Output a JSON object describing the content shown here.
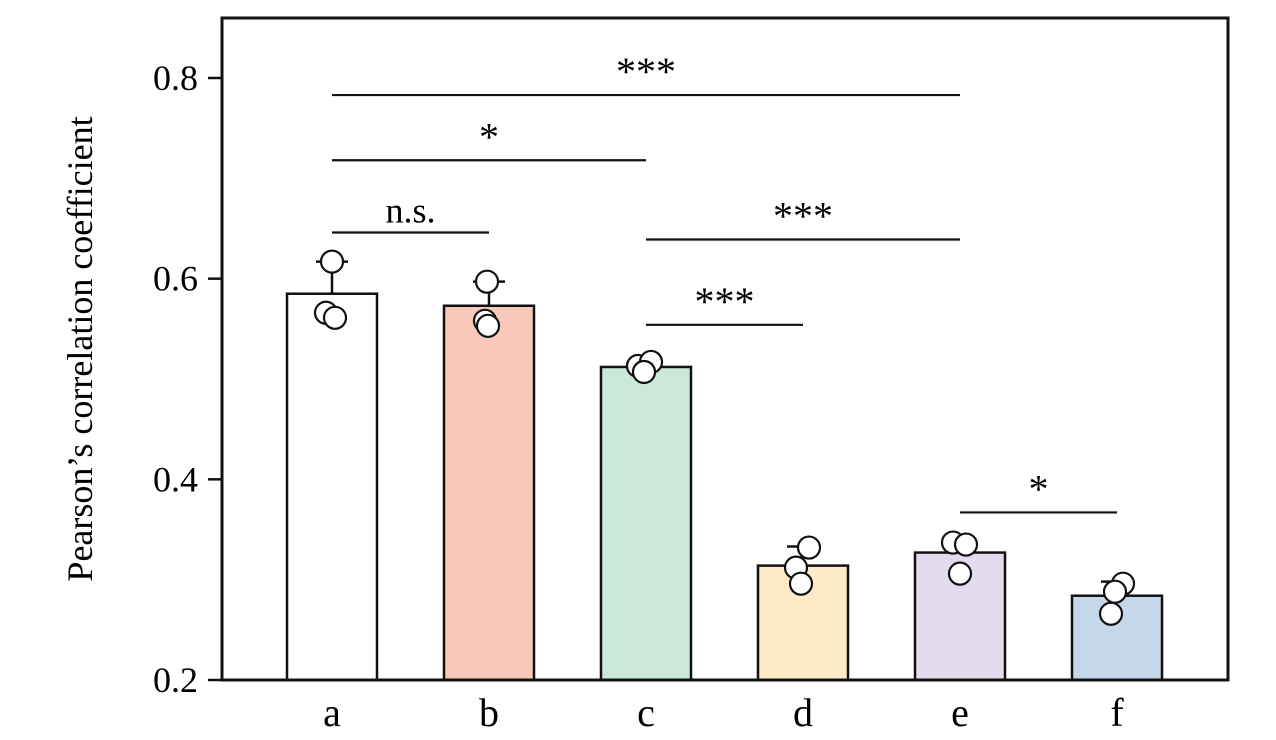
{
  "chart_data": {
    "type": "bar",
    "title": "",
    "xlabel": "",
    "ylabel": "Pearson’s correlation coefficient",
    "ylim": [
      0.2,
      0.8
    ],
    "yticks": [
      0.2,
      0.4,
      0.6,
      0.8
    ],
    "grid": false,
    "legend_position": "none",
    "categories": [
      "a",
      "b",
      "c",
      "d",
      "e",
      "f"
    ],
    "values": [
      0.585,
      0.573,
      0.512,
      0.314,
      0.327,
      0.284
    ],
    "errors_upper": [
      0.032,
      0.024,
      0.008,
      0.019,
      0.011,
      0.014
    ],
    "bar_colors": [
      "#ffffff",
      "#f8c8bb",
      "#cce8da",
      "#fdeac7",
      "#e3dbed",
      "#c5d8ea"
    ],
    "bar_stroke": "#111111",
    "point_fill": "#ffffff",
    "point_stroke": "#111111",
    "scatter_points": [
      [
        {
          "dx": -6,
          "v": 0.566
        },
        {
          "dx": 3,
          "v": 0.561
        },
        {
          "dx": 0,
          "v": 0.617
        }
      ],
      [
        {
          "dx": -4,
          "v": 0.558
        },
        {
          "dx": -1,
          "v": 0.553
        },
        {
          "dx": -2,
          "v": 0.597
        }
      ],
      [
        {
          "dx": -8,
          "v": 0.513
        },
        {
          "dx": 5,
          "v": 0.517
        },
        {
          "dx": -2,
          "v": 0.507
        }
      ],
      [
        {
          "dx": -7,
          "v": 0.312
        },
        {
          "dx": 6,
          "v": 0.332
        },
        {
          "dx": -2,
          "v": 0.296
        }
      ],
      [
        {
          "dx": -7,
          "v": 0.337
        },
        {
          "dx": 6,
          "v": 0.335
        },
        {
          "dx": 0,
          "v": 0.306
        }
      ],
      [
        {
          "dx": 6,
          "v": 0.296
        },
        {
          "dx": -2,
          "v": 0.288
        },
        {
          "dx": -6,
          "v": 0.266
        }
      ]
    ],
    "significance": [
      {
        "from": "a",
        "to": "e",
        "label": "***",
        "y": 0.783
      },
      {
        "from": "a",
        "to": "c",
        "label": "*",
        "y": 0.718
      },
      {
        "from": "a",
        "to": "b",
        "label": "n.s.",
        "y": 0.646
      },
      {
        "from": "c",
        "to": "e",
        "label": "***",
        "y": 0.639
      },
      {
        "from": "c",
        "to": "d",
        "label": "***",
        "y": 0.554
      },
      {
        "from": "e",
        "to": "f",
        "label": "*",
        "y": 0.367
      }
    ]
  }
}
